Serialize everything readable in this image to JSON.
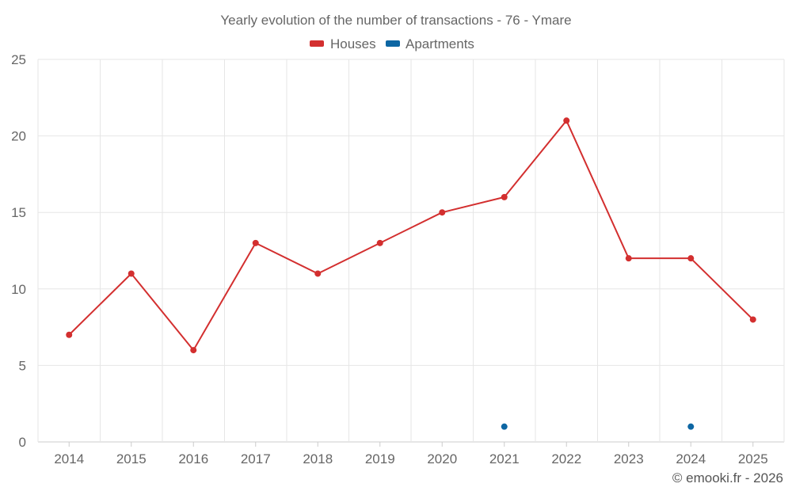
{
  "chart_data": {
    "type": "line",
    "title": "Yearly evolution of the number of transactions - 76 - Ymare",
    "categories": [
      "2014",
      "2015",
      "2016",
      "2017",
      "2018",
      "2019",
      "2020",
      "2021",
      "2022",
      "2023",
      "2024",
      "2025"
    ],
    "series": [
      {
        "name": "Houses",
        "color": "#d32f2f",
        "values": [
          7,
          11,
          6,
          13,
          11,
          13,
          15,
          16,
          21,
          12,
          12,
          8
        ]
      },
      {
        "name": "Apartments",
        "color": "#0d66a3",
        "values": [
          null,
          null,
          null,
          null,
          null,
          null,
          null,
          1,
          null,
          null,
          1,
          null
        ]
      }
    ],
    "ylim": [
      0,
      25
    ],
    "yticks": [
      "0",
      "5",
      "10",
      "15",
      "20",
      "25"
    ],
    "xlabel": "",
    "ylabel": "",
    "grid": true,
    "legend_position": "top-center"
  },
  "credit": "© emooki.fr - 2026"
}
